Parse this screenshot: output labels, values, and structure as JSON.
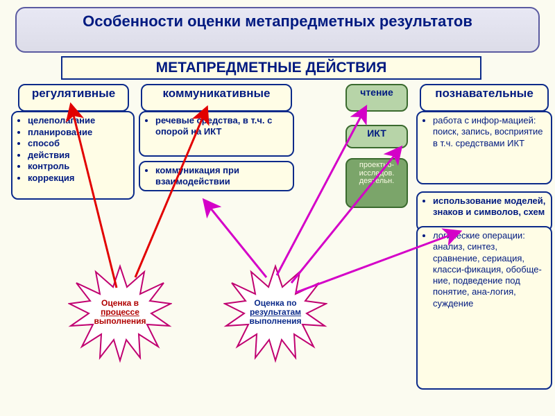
{
  "background_color": "#fbfbf0",
  "colors": {
    "title_border": "#5a5aa0",
    "title_text": "#001a80",
    "box_fill": "#fffde6",
    "box_border": "#0b2a8a",
    "green_fill": "#b7d4a8",
    "green_border": "#3a6a2e",
    "green_dark": "#7ba56a",
    "arrow_red": "#e20000",
    "arrow_magenta": "#d400c8",
    "star_stroke": "#c00070",
    "star_fill": "#ffffff"
  },
  "main_title": "Особенности оценки метапредметных результатов",
  "sub_title": "МЕТАПРЕДМЕТНЫЕ ДЕЙСТВИЯ",
  "categories": {
    "reg": "регулятивные",
    "comm": "коммуникативные",
    "read": "чтение",
    "cogn": "познавательные"
  },
  "reg_bullets": [
    "целеполагание",
    "планирование",
    "способ",
    "действия",
    "контроль",
    "коррекция"
  ],
  "comm_group1": "речевые средства, в т.ч. с опорой на ИКТ",
  "comm_group2": "коммуникация при взаимодействии",
  "green_ikt": "ИКТ",
  "green_research": "проектно-исследов. деятельн.",
  "cogn_group1_lead": "работа с инфор-мацией:",
  "cogn_group1_tail": " поиск, запись, восприятие в т.ч. средствами ИКТ",
  "cogn_group2a": "использование моделей, знаков и символов, схем",
  "cogn_group2b_lead": "логические операции:",
  "cogn_group2b_tail": " анализ, синтез, сравнение, сериация, класси-фикация, обобще-ние, подведение под понятие, ана-логия, суждение",
  "star_left_line1": "Оценка в",
  "star_left_line2": "процессе",
  "star_left_line3": "выполнения",
  "star_right_line1": "Оценка по",
  "star_right_line2": "результатам",
  "star_right_line3": "выполнения",
  "arrows": {
    "red": [
      {
        "from": [
          168,
          415
        ],
        "to": [
          103,
          154
        ]
      },
      {
        "from": [
          195,
          400
        ],
        "to": [
          297,
          158
        ]
      }
    ],
    "magenta": [
      {
        "from": [
          384,
          400
        ],
        "to": [
          296,
          291
        ]
      },
      {
        "from": [
          399,
          397
        ],
        "to": [
          526,
          157
        ]
      },
      {
        "from": [
          420,
          408
        ],
        "to": [
          576,
          215
        ]
      },
      {
        "from": [
          426,
          422
        ],
        "to": [
          660,
          335
        ]
      }
    ]
  }
}
